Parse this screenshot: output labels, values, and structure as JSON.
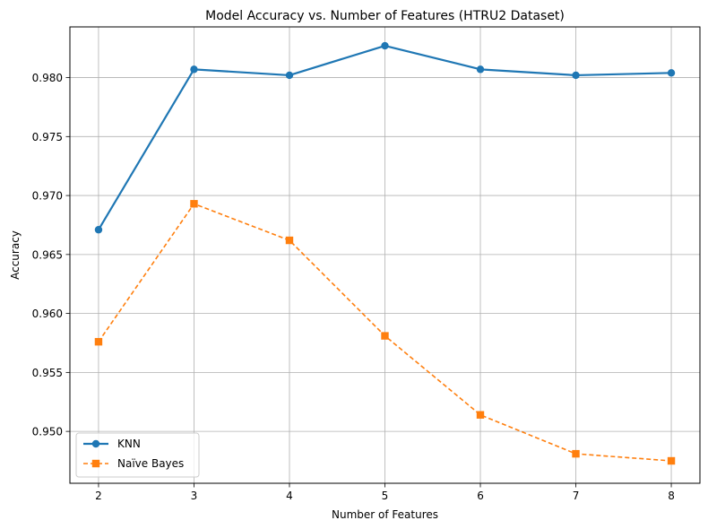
{
  "chart_data": {
    "type": "line",
    "title": "Model Accuracy vs. Number of Features (HTRU2 Dataset)",
    "xlabel": "Number of Features",
    "ylabel": "Accuracy",
    "x": [
      2,
      3,
      4,
      5,
      6,
      7,
      8
    ],
    "xlim": [
      1.7,
      8.3
    ],
    "ylim": [
      0.9456,
      0.9843
    ],
    "x_ticks": [
      2,
      3,
      4,
      5,
      6,
      7,
      8
    ],
    "y_ticks": [
      0.95,
      0.955,
      0.96,
      0.965,
      0.97,
      0.975,
      0.98
    ],
    "y_tick_labels": [
      "0.950",
      "0.955",
      "0.960",
      "0.965",
      "0.970",
      "0.975",
      "0.980"
    ],
    "grid": true,
    "legend_position": "lower-left",
    "series": [
      {
        "name": "KNN",
        "values": [
          0.9671,
          0.9807,
          0.9802,
          0.9827,
          0.9807,
          0.9802,
          0.9804
        ],
        "color": "#1f77b4",
        "line_style": "solid",
        "marker": "circle"
      },
      {
        "name": "Naïve Bayes",
        "values": [
          0.9576,
          0.9693,
          0.9662,
          0.9581,
          0.9514,
          0.9481,
          0.9475
        ],
        "color": "#ff7f0e",
        "line_style": "dashed",
        "marker": "square"
      }
    ]
  }
}
